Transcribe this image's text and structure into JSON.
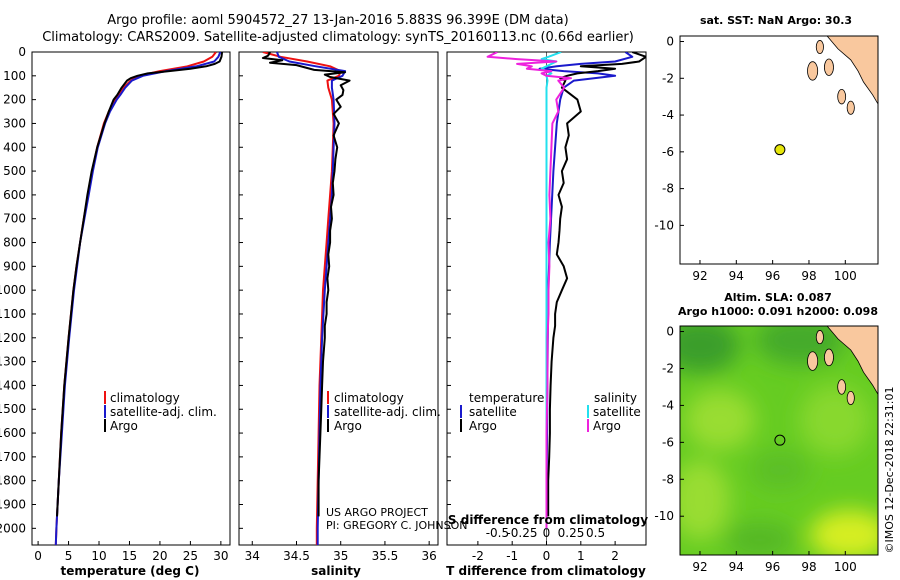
{
  "titles": {
    "line1": "Argo profile: aoml 5904572_27 13-Jan-2016 5.883S 96.399E (DM data)",
    "line2": "Climatology: CARS2009. Satellite-adjusted climatology: synTS_20160113.nc (0.66d earlier)"
  },
  "credit": {
    "project": "US ARGO PROJECT",
    "pi": "PI: GREGORY C. JOHNSON",
    "stamp": "©IMOS 12-Dec-2018 22:31:01"
  },
  "colors": {
    "climatology": "#ee1111",
    "satellite": "#1a1acc",
    "argo": "#000000",
    "sal_satellite": "#22e0ee",
    "sal_argo": "#ee22dd",
    "land": "#f9c89e",
    "float_marker": "#e6e60a"
  },
  "pressure_axis": {
    "ticks": [
      "0",
      "100",
      "200",
      "300",
      "400",
      "500",
      "600",
      "700",
      "800",
      "900",
      "1000",
      "1100",
      "1200",
      "1300",
      "1400",
      "1500",
      "1600",
      "1700",
      "1800",
      "1900",
      "2000"
    ],
    "ylim": [
      0,
      2070
    ]
  },
  "chart_data": [
    {
      "id": "temperature",
      "type": "line",
      "xlabel": "temperature (deg C)",
      "xlim": [
        -1,
        31.5
      ],
      "xticks": [
        "0",
        "5",
        "10",
        "15",
        "20",
        "25",
        "30"
      ],
      "ylim": [
        0,
        2070
      ],
      "legend": [
        "climatology",
        "satellite-adj. clim.",
        "Argo"
      ],
      "legend_position": "lower-left",
      "series": [
        {
          "name": "climatology",
          "pressure": [
            0,
            20,
            40,
            60,
            80,
            100,
            120,
            150,
            180,
            200,
            250,
            300,
            400,
            500,
            600,
            700,
            800,
            900,
            1000,
            1200,
            1400,
            1600,
            1800,
            2000,
            2070
          ],
          "values": [
            29.2,
            28.6,
            27.2,
            24.5,
            20.0,
            16.5,
            15.2,
            14.0,
            13.2,
            12.6,
            11.6,
            10.8,
            9.7,
            8.9,
            8.2,
            7.5,
            6.9,
            6.3,
            5.8,
            5.0,
            4.3,
            3.8,
            3.4,
            3.0,
            2.9
          ]
        },
        {
          "name": "satellite-adj. clim.",
          "pressure": [
            0,
            20,
            40,
            60,
            80,
            100,
            120,
            150,
            180,
            200,
            250,
            300,
            400,
            500,
            600,
            700,
            800,
            900,
            1000,
            1200,
            1400,
            1600,
            1800,
            2000,
            2070
          ],
          "values": [
            29.9,
            29.6,
            28.9,
            26.0,
            21.0,
            17.2,
            15.4,
            14.3,
            13.5,
            12.9,
            11.8,
            11.0,
            9.8,
            9.0,
            8.3,
            7.6,
            6.9,
            6.4,
            5.9,
            5.1,
            4.4,
            3.9,
            3.4,
            3.0,
            2.9
          ]
        },
        {
          "name": "Argo",
          "pressure": [
            0,
            20,
            40,
            50,
            60,
            70,
            80,
            90,
            100,
            110,
            120,
            150,
            180,
            200,
            250,
            300,
            400,
            500,
            600,
            700,
            800,
            900,
            1000,
            1200,
            1400,
            1600,
            1800,
            1950
          ],
          "values": [
            30.2,
            30.1,
            29.8,
            29.0,
            27.6,
            25.0,
            21.5,
            18.0,
            16.3,
            15.2,
            14.6,
            13.7,
            13.0,
            12.4,
            11.6,
            10.9,
            9.7,
            8.8,
            8.1,
            7.5,
            6.9,
            6.3,
            5.8,
            5.0,
            4.3,
            3.8,
            3.4,
            3.1
          ]
        }
      ]
    },
    {
      "id": "salinity",
      "type": "line",
      "xlabel": "salinity",
      "xlim": [
        33.85,
        36.1
      ],
      "xticks": [
        "34",
        "34.5",
        "35",
        "35.5",
        "36"
      ],
      "ylim": [
        0,
        2070
      ],
      "legend": [
        "climatology",
        "satellite-adj. clim.",
        "Argo"
      ],
      "legend_position": "lower-left",
      "series": [
        {
          "name": "climatology",
          "pressure": [
            0,
            20,
            40,
            60,
            80,
            100,
            120,
            150,
            200,
            300,
            400,
            500,
            600,
            700,
            800,
            900,
            1000,
            1200,
            1400,
            1600,
            1800,
            2000,
            2070
          ],
          "values": [
            34.12,
            34.32,
            34.62,
            34.88,
            35.0,
            34.98,
            34.85,
            34.86,
            34.9,
            34.92,
            34.91,
            34.9,
            34.88,
            34.86,
            34.84,
            34.82,
            34.8,
            34.78,
            34.76,
            34.75,
            34.74,
            34.73,
            34.73
          ]
        },
        {
          "name": "satellite-adj. clim.",
          "pressure": [
            0,
            20,
            40,
            60,
            80,
            100,
            120,
            150,
            200,
            300,
            400,
            500,
            600,
            700,
            800,
            900,
            1000,
            1200,
            1400,
            1600,
            1800,
            2000,
            2070
          ],
          "values": [
            34.28,
            34.3,
            34.42,
            34.72,
            35.05,
            35.02,
            34.9,
            34.9,
            34.92,
            34.93,
            34.92,
            34.91,
            34.9,
            34.88,
            34.86,
            34.84,
            34.82,
            34.79,
            34.77,
            34.76,
            34.75,
            34.74,
            34.74
          ]
        },
        {
          "name": "Argo",
          "pressure": [
            0,
            15,
            25,
            35,
            45,
            55,
            65,
            75,
            85,
            95,
            105,
            120,
            140,
            160,
            180,
            200,
            230,
            260,
            300,
            350,
            400,
            450,
            500,
            550,
            600,
            650,
            700,
            750,
            800,
            850,
            900,
            950,
            1000,
            1050,
            1100,
            1150,
            1200,
            1300,
            1400,
            1500,
            1600,
            1700,
            1800,
            1950
          ],
          "values": [
            34.2,
            34.18,
            34.12,
            34.34,
            34.2,
            34.5,
            34.6,
            34.7,
            35.05,
            34.82,
            34.88,
            35.1,
            35.0,
            35.03,
            35.02,
            34.95,
            35.0,
            34.92,
            34.98,
            34.92,
            34.96,
            34.94,
            34.93,
            34.91,
            34.92,
            34.89,
            34.9,
            34.88,
            34.88,
            34.86,
            34.87,
            34.85,
            34.86,
            34.84,
            34.84,
            34.82,
            34.82,
            34.8,
            34.79,
            34.78,
            34.77,
            34.76,
            34.75,
            34.75
          ]
        }
      ]
    },
    {
      "id": "differences",
      "type": "line",
      "xlabel": "T difference from climatology",
      "xlabel2": "S difference from climatology",
      "xlim": [
        -2.9,
        2.9
      ],
      "xticks": [
        "-2",
        "-1",
        "0",
        "1",
        "2"
      ],
      "xticks2": [
        "-0.5",
        "-0.25",
        "0",
        "0.25",
        "0.5"
      ],
      "ylim": [
        0,
        2070
      ],
      "legend": [
        "temperature",
        "satellite",
        "Argo",
        "salinity",
        "satellite",
        "Argo"
      ],
      "legend_position": "lower",
      "series": [
        {
          "name": "T satellite",
          "pressure": [
            0,
            20,
            40,
            50,
            60,
            70,
            80,
            90,
            100,
            120,
            150,
            200,
            300,
            500,
            800,
            1000,
            1500,
            2000
          ],
          "values": [
            2.3,
            2.5,
            2.0,
            1.0,
            0.3,
            -0.2,
            0.5,
            1.5,
            2.0,
            0.8,
            0.5,
            0.4,
            0.3,
            0.2,
            0.1,
            0.05,
            0.02,
            0.0
          ]
        },
        {
          "name": "T Argo",
          "pressure": [
            0,
            20,
            40,
            50,
            60,
            70,
            80,
            90,
            100,
            110,
            120,
            150,
            200,
            250,
            300,
            350,
            400,
            450,
            500,
            550,
            600,
            650,
            700,
            750,
            800,
            850,
            900,
            950,
            1000,
            1050,
            1100,
            1150,
            1200,
            1300,
            1400,
            1500,
            1600,
            1700,
            1800,
            1950
          ],
          "values": [
            2.5,
            2.9,
            2.7,
            2.2,
            1.0,
            2.0,
            1.5,
            0.9,
            0.6,
            0.4,
            0.55,
            0.45,
            0.9,
            1.0,
            0.6,
            0.65,
            0.55,
            0.6,
            0.45,
            0.5,
            0.35,
            0.45,
            0.4,
            0.38,
            0.35,
            0.3,
            0.5,
            0.6,
            0.45,
            0.3,
            0.25,
            0.25,
            0.2,
            0.15,
            0.12,
            0.1,
            0.1,
            0.08,
            0.05,
            0.05
          ]
        },
        {
          "name": "S satellite",
          "pressure": [
            0,
            20,
            30,
            40,
            50,
            60,
            70,
            80,
            90,
            100,
            120,
            150,
            200,
            300,
            500,
            800,
            1000,
            1500,
            2000
          ],
          "values": [
            0.15,
            0.02,
            -0.05,
            0.1,
            0.05,
            0.0,
            -0.05,
            0.0,
            0.05,
            0.0,
            0.01,
            0.0,
            0.0,
            0.0,
            0.0,
            0.0,
            0.0,
            0.0,
            0.0
          ]
        },
        {
          "name": "S Argo",
          "pressure": [
            0,
            20,
            30,
            40,
            50,
            60,
            70,
            80,
            90,
            100,
            110,
            120,
            150,
            200,
            250,
            300,
            400,
            500,
            600,
            700,
            800,
            900,
            1000,
            1100,
            1200,
            1400,
            1600,
            1800,
            2000
          ],
          "values": [
            -0.5,
            -0.6,
            -0.3,
            0.1,
            -0.3,
            -0.15,
            -0.2,
            0.05,
            -0.05,
            0.0,
            0.25,
            0.12,
            0.18,
            0.1,
            0.12,
            0.06,
            0.05,
            0.04,
            0.03,
            0.04,
            0.02,
            0.03,
            0.02,
            0.02,
            0.01,
            0.01,
            0.0,
            0.0,
            0.0
          ]
        }
      ]
    },
    {
      "id": "sst_map",
      "type": "scatter",
      "title": "sat. SST: NaN Argo: 30.3",
      "xlim": [
        90.9,
        101.8
      ],
      "ylim": [
        -12.1,
        0.3
      ],
      "xticks": [
        "92",
        "94",
        "96",
        "98",
        "100"
      ],
      "yticks": [
        "0",
        "-2",
        "-4",
        "-6",
        "-8",
        "-10"
      ],
      "float_position": {
        "lon": 96.399,
        "lat": -5.883
      }
    },
    {
      "id": "sla_map",
      "type": "heatmap",
      "title": "Altim. SLA: 0.087",
      "subtitle": "Argo h1000: 0.091 h2000: 0.098",
      "xlim": [
        90.9,
        101.8
      ],
      "ylim": [
        -12.1,
        0.3
      ],
      "xticks": [
        "92",
        "94",
        "96",
        "98",
        "100"
      ],
      "yticks": [
        "0",
        "-2",
        "-4",
        "-6",
        "-8",
        "-10"
      ],
      "float_position": {
        "lon": 96.399,
        "lat": -5.883
      }
    }
  ]
}
